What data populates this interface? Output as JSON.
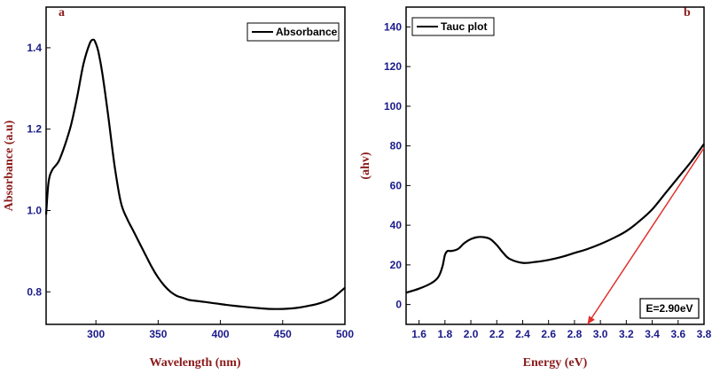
{
  "colors": {
    "axis_tick": "#1a1a8a",
    "axis_label": "#8b1a1a",
    "curve": "#000000",
    "fit_line": "#e0302a"
  },
  "chart_data": [
    {
      "type": "line",
      "panel_letter": "a",
      "xlabel": "Wavelength (nm)",
      "ylabel": "Absorbance (a.u)",
      "xlim": [
        260,
        500
      ],
      "ylim": [
        0.72,
        1.5
      ],
      "xticks": [
        300,
        350,
        400,
        450,
        500
      ],
      "yticks": [
        0.8,
        1.0,
        1.2,
        1.4
      ],
      "ytick_labels": [
        "0.8",
        "1.0",
        "1.2",
        "1.4"
      ],
      "legend": "top-right",
      "series": [
        {
          "name": "Absorbance",
          "x": [
            260,
            262,
            265,
            270,
            275,
            280,
            285,
            290,
            295,
            298,
            300,
            302,
            305,
            310,
            315,
            320,
            325,
            330,
            335,
            340,
            345,
            350,
            355,
            360,
            365,
            370,
            375,
            380,
            390,
            400,
            410,
            420,
            430,
            440,
            450,
            460,
            470,
            480,
            490,
            500
          ],
          "y": [
            0.99,
            1.07,
            1.1,
            1.12,
            1.16,
            1.21,
            1.28,
            1.36,
            1.41,
            1.42,
            1.41,
            1.39,
            1.34,
            1.23,
            1.11,
            1.02,
            0.98,
            0.95,
            0.92,
            0.89,
            0.86,
            0.835,
            0.815,
            0.8,
            0.79,
            0.785,
            0.78,
            0.778,
            0.774,
            0.77,
            0.766,
            0.763,
            0.76,
            0.758,
            0.758,
            0.76,
            0.765,
            0.772,
            0.785,
            0.81
          ]
        }
      ]
    },
    {
      "type": "line",
      "panel_letter": "b",
      "xlabel": "Energy (eV)",
      "ylabel": "(ahv)",
      "xlim": [
        1.5,
        3.8
      ],
      "ylim": [
        -10,
        150
      ],
      "xticks": [
        1.6,
        1.8,
        2.0,
        2.2,
        2.4,
        2.6,
        2.8,
        3.0,
        3.2,
        3.4,
        3.6,
        3.8
      ],
      "xtick_labels": [
        "1.6",
        "1.8",
        "2.0",
        "2.2",
        "2.4",
        "2.6",
        "2.8",
        "3.0",
        "3.2",
        "3.4",
        "3.6",
        "3.8"
      ],
      "yticks": [
        0,
        20,
        40,
        60,
        80,
        100,
        120,
        140
      ],
      "legend": "top-left",
      "series": [
        {
          "name": "Tauc plot",
          "x": [
            1.5,
            1.6,
            1.7,
            1.75,
            1.78,
            1.8,
            1.82,
            1.85,
            1.9,
            1.95,
            2.0,
            2.05,
            2.1,
            2.15,
            2.2,
            2.25,
            2.3,
            2.4,
            2.5,
            2.6,
            2.7,
            2.8,
            2.9,
            3.0,
            3.1,
            3.2,
            3.3,
            3.4,
            3.5,
            3.6,
            3.7,
            3.8
          ],
          "y": [
            6,
            8,
            11,
            14,
            19,
            25,
            27,
            27,
            28,
            31,
            33,
            34,
            34,
            33,
            30,
            26,
            23,
            21,
            21.5,
            22.5,
            24,
            26,
            28,
            30.5,
            33.5,
            37,
            42,
            48,
            56,
            64,
            72,
            81
          ]
        }
      ],
      "fit_line": {
        "x": [
          2.9,
          3.8
        ],
        "y": [
          -10,
          79
        ]
      },
      "annotation": "E=2.90eV"
    }
  ]
}
